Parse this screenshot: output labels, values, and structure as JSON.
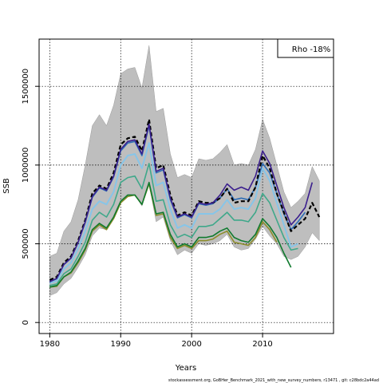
{
  "chart_data": {
    "type": "line",
    "xlabel": "Years",
    "ylabel": "SSB",
    "xlim": [
      1978.5,
      2020.0
    ],
    "ylim": [
      -70000,
      1800000
    ],
    "x_ticks": [
      {
        "value": 1980,
        "label": "1980"
      },
      {
        "value": 1990,
        "label": "1990"
      },
      {
        "value": 2000,
        "label": "2000"
      },
      {
        "value": 2010,
        "label": "2010"
      }
    ],
    "y_ticks": [
      {
        "value": 0,
        "label": "0"
      },
      {
        "value": 500000,
        "label": "500000"
      },
      {
        "value": 1000000,
        "label": "1000000"
      },
      {
        "value": 1500000,
        "label": "1500000"
      }
    ],
    "grid": true,
    "legend_text": "Rho -18%",
    "legend_position": "top-right",
    "footer": "stockassessment.org, GoBHer_Benchmark_2021_with_new_survey_numbers, r13471 , git: c28bdc2a44ad",
    "band": {
      "color": "#bebebe",
      "x": [
        1980,
        1981,
        1982,
        1983,
        1984,
        1985,
        1986,
        1987,
        1988,
        1989,
        1990,
        1991,
        1992,
        1993,
        1994,
        1995,
        1996,
        1997,
        1998,
        1999,
        2000,
        2001,
        2002,
        2003,
        2004,
        2005,
        2006,
        2007,
        2008,
        2009,
        2010,
        2011,
        2012,
        2013,
        2014,
        2015,
        2016,
        2017,
        2018
      ],
      "lower": [
        170000,
        190000,
        245000,
        280000,
        350000,
        430000,
        550000,
        600000,
        590000,
        660000,
        760000,
        800000,
        810000,
        740000,
        880000,
        640000,
        670000,
        520000,
        430000,
        460000,
        440000,
        500000,
        490000,
        500000,
        520000,
        560000,
        480000,
        460000,
        470000,
        530000,
        610000,
        550000,
        500000,
        420000,
        400000,
        420000,
        480000,
        570000,
        520000
      ],
      "upper": [
        420000,
        440000,
        580000,
        640000,
        780000,
        1000000,
        1250000,
        1320000,
        1250000,
        1380000,
        1580000,
        1610000,
        1620000,
        1490000,
        1760000,
        1340000,
        1360000,
        1070000,
        920000,
        940000,
        920000,
        1040000,
        1030000,
        1040000,
        1080000,
        1130000,
        1000000,
        1010000,
        1000000,
        1100000,
        1290000,
        1170000,
        1000000,
        830000,
        730000,
        770000,
        820000,
        990000,
        900000
      ]
    },
    "series": [
      {
        "color": "#000000",
        "dashed": true,
        "width": 2.2,
        "x": [
          1980,
          1981,
          1982,
          1983,
          1984,
          1985,
          1986,
          1987,
          1988,
          1989,
          1990,
          1991,
          1992,
          1993,
          1994,
          1995,
          1996,
          1997,
          1998,
          1999,
          2000,
          2001,
          2002,
          2003,
          2004,
          2005,
          2006,
          2007,
          2008,
          2009,
          2010,
          2011,
          2012,
          2013,
          2014,
          2015,
          2016,
          2017,
          2018
        ],
        "y": [
          270000,
          290000,
          380000,
          420000,
          520000,
          650000,
          820000,
          870000,
          850000,
          950000,
          1130000,
          1170000,
          1180000,
          1090000,
          1290000,
          980000,
          1000000,
          810000,
          680000,
          700000,
          680000,
          770000,
          760000,
          760000,
          790000,
          850000,
          760000,
          770000,
          770000,
          860000,
          1060000,
          980000,
          820000,
          700000,
          580000,
          620000,
          660000,
          760000,
          670000
        ]
      },
      {
        "color": "#3b1f8e",
        "dashed": false,
        "width": 1.6,
        "x": [
          1980,
          1981,
          1982,
          1983,
          1984,
          1985,
          1986,
          1987,
          1988,
          1989,
          1990,
          1991,
          1992,
          1993,
          1994,
          1995,
          1996,
          1997,
          1998,
          1999,
          2000,
          2001,
          2002,
          2003,
          2004,
          2005,
          2006,
          2007,
          2008,
          2009,
          2010,
          2011,
          2012,
          2013,
          2014,
          2015,
          2016,
          2017
        ],
        "y": [
          260000,
          280000,
          370000,
          410000,
          510000,
          640000,
          800000,
          860000,
          840000,
          930000,
          1100000,
          1150000,
          1160000,
          1070000,
          1260000,
          960000,
          980000,
          790000,
          670000,
          690000,
          670000,
          760000,
          750000,
          760000,
          810000,
          880000,
          840000,
          860000,
          840000,
          930000,
          1090000,
          1010000,
          870000,
          730000,
          620000,
          670000,
          730000,
          890000
        ]
      },
      {
        "color": "#2d6db5",
        "dashed": false,
        "width": 1.6,
        "x": [
          1980,
          1981,
          1982,
          1983,
          1984,
          1985,
          1986,
          1987,
          1988,
          1989,
          1990,
          1991,
          1992,
          1993,
          1994,
          1995,
          1996,
          1997,
          1998,
          1999,
          2000,
          2001,
          2002,
          2003,
          2004,
          2005,
          2006,
          2007,
          2008,
          2009,
          2010,
          2011,
          2012,
          2013,
          2014,
          2015,
          2016
        ],
        "y": [
          258000,
          278000,
          368000,
          408000,
          508000,
          635000,
          795000,
          855000,
          835000,
          925000,
          1090000,
          1140000,
          1150000,
          1060000,
          1250000,
          950000,
          970000,
          780000,
          665000,
          685000,
          665000,
          755000,
          745000,
          755000,
          790000,
          850000,
          780000,
          790000,
          780000,
          860000,
          1010000,
          950000,
          820000,
          690000,
          590000,
          640000,
          700000
        ]
      },
      {
        "color": "#87c5e8",
        "dashed": false,
        "width": 2.0,
        "x": [
          1980,
          1981,
          1982,
          1983,
          1984,
          1985,
          1986,
          1987,
          1988,
          1989,
          1990,
          1991,
          1992,
          1993,
          1994,
          1995,
          1996,
          1997,
          1998,
          1999,
          2000,
          2001,
          2002,
          2003,
          2004,
          2005,
          2006,
          2007,
          2008,
          2009,
          2010,
          2011,
          2012,
          2013,
          2014,
          2015
        ],
        "y": [
          250000,
          265000,
          340000,
          380000,
          470000,
          580000,
          720000,
          770000,
          750000,
          830000,
          1000000,
          1060000,
          1070000,
          980000,
          1140000,
          870000,
          890000,
          720000,
          600000,
          620000,
          600000,
          690000,
          690000,
          690000,
          720000,
          780000,
          720000,
          730000,
          720000,
          790000,
          980000,
          900000,
          760000,
          620000,
          480000,
          500000
        ]
      },
      {
        "color": "#3fa88a",
        "dashed": false,
        "width": 1.6,
        "x": [
          1980,
          1981,
          1982,
          1983,
          1984,
          1985,
          1986,
          1987,
          1988,
          1989,
          1990,
          1991,
          1992,
          1993,
          1994,
          1995,
          1996,
          1997,
          1998,
          1999,
          2000,
          2001,
          2002,
          2003,
          2004,
          2005,
          2006,
          2007,
          2008,
          2009,
          2010,
          2011,
          2012,
          2013,
          2014,
          2015
        ],
        "y": [
          235000,
          245000,
          310000,
          340000,
          420000,
          510000,
          650000,
          700000,
          670000,
          750000,
          890000,
          920000,
          930000,
          850000,
          1010000,
          770000,
          780000,
          620000,
          540000,
          560000,
          540000,
          610000,
          610000,
          620000,
          660000,
          700000,
          650000,
          650000,
          640000,
          700000,
          820000,
          760000,
          650000,
          540000,
          460000,
          470000
        ]
      },
      {
        "color": "#107a2e",
        "dashed": false,
        "width": 1.6,
        "x": [
          1980,
          1981,
          1982,
          1983,
          1984,
          1985,
          1986,
          1987,
          1988,
          1989,
          1990,
          1991,
          1992,
          1993,
          1994,
          1995,
          1996,
          1997,
          1998,
          1999,
          2000,
          2001,
          2002,
          2003,
          2004,
          2005,
          2006,
          2007,
          2008,
          2009,
          2010,
          2011,
          2012,
          2013,
          2014
        ],
        "y": [
          225000,
          235000,
          290000,
          320000,
          390000,
          470000,
          590000,
          630000,
          600000,
          670000,
          770000,
          810000,
          810000,
          750000,
          890000,
          690000,
          700000,
          560000,
          480000,
          500000,
          480000,
          540000,
          540000,
          550000,
          580000,
          600000,
          540000,
          520000,
          510000,
          560000,
          660000,
          610000,
          540000,
          440000,
          350000
        ]
      },
      {
        "color": "#8c8c2a",
        "dashed": false,
        "width": 1.6,
        "x": [
          1980,
          1981,
          1982,
          1983,
          1984,
          1985,
          1986,
          1987,
          1988,
          1989,
          1990,
          1991,
          1992,
          1993,
          1994,
          1995,
          1996,
          1997,
          1998,
          1999,
          2000,
          2001,
          2002,
          2003,
          2004,
          2005,
          2006,
          2007,
          2008,
          2009,
          2010,
          2011,
          2012
        ],
        "y": [
          225000,
          230000,
          290000,
          315000,
          380000,
          460000,
          580000,
          620000,
          590000,
          660000,
          760000,
          800000,
          810000,
          750000,
          880000,
          680000,
          690000,
          540000,
          470000,
          490000,
          470000,
          520000,
          520000,
          530000,
          560000,
          580000,
          510000,
          500000,
          490000,
          540000,
          640000,
          590000,
          510000
        ]
      }
    ]
  }
}
